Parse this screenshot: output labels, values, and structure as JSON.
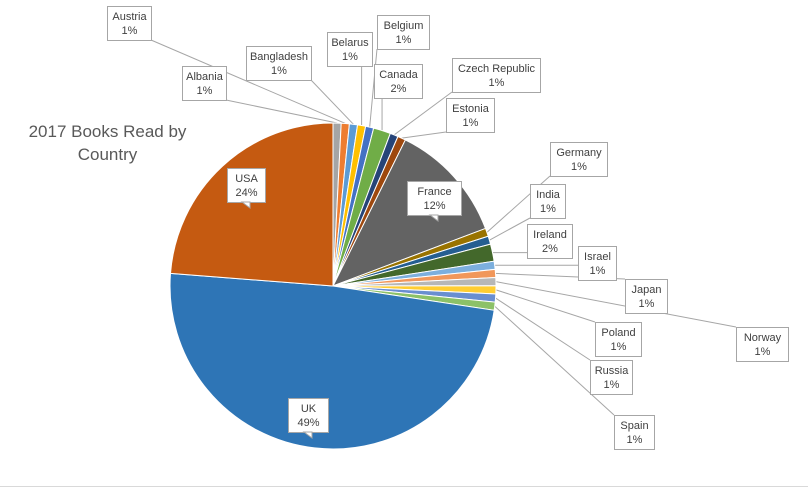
{
  "chart_data": {
    "type": "pie",
    "title": "2017 Books Read by Country",
    "categories": [
      "Albania",
      "Austria",
      "Bangladesh",
      "Belarus",
      "Belgium",
      "Canada",
      "Czech Republic",
      "Estonia",
      "France",
      "Germany",
      "India",
      "Ireland",
      "Israel",
      "Japan",
      "Norway",
      "Poland",
      "Russia",
      "Spain",
      "UK",
      "USA"
    ],
    "labels": [
      "1%",
      "1%",
      "1%",
      "1%",
      "1%",
      "2%",
      "1%",
      "1%",
      "12%",
      "1%",
      "1%",
      "2%",
      "1%",
      "1%",
      "1%",
      "1%",
      "1%",
      "1%",
      "49%",
      "24%"
    ],
    "values": [
      0.8,
      0.8,
      0.8,
      0.8,
      0.8,
      1.7,
      0.8,
      0.8,
      11.9,
      0.8,
      0.8,
      1.7,
      0.8,
      0.8,
      0.8,
      0.8,
      0.8,
      0.8,
      48.7,
      23.7
    ],
    "colors": [
      "#a5a5a5",
      "#ed7d31",
      "#5b9bd5",
      "#ffc000",
      "#4472c4",
      "#70ad47",
      "#264478",
      "#9e480e",
      "#636363",
      "#997300",
      "#255e91",
      "#43682b",
      "#7cafdd",
      "#f1975a",
      "#b7b7b7",
      "#ffcd33",
      "#698ed0",
      "#8cc168",
      "#2e75b6",
      "#c55a11"
    ],
    "legend": "none"
  }
}
